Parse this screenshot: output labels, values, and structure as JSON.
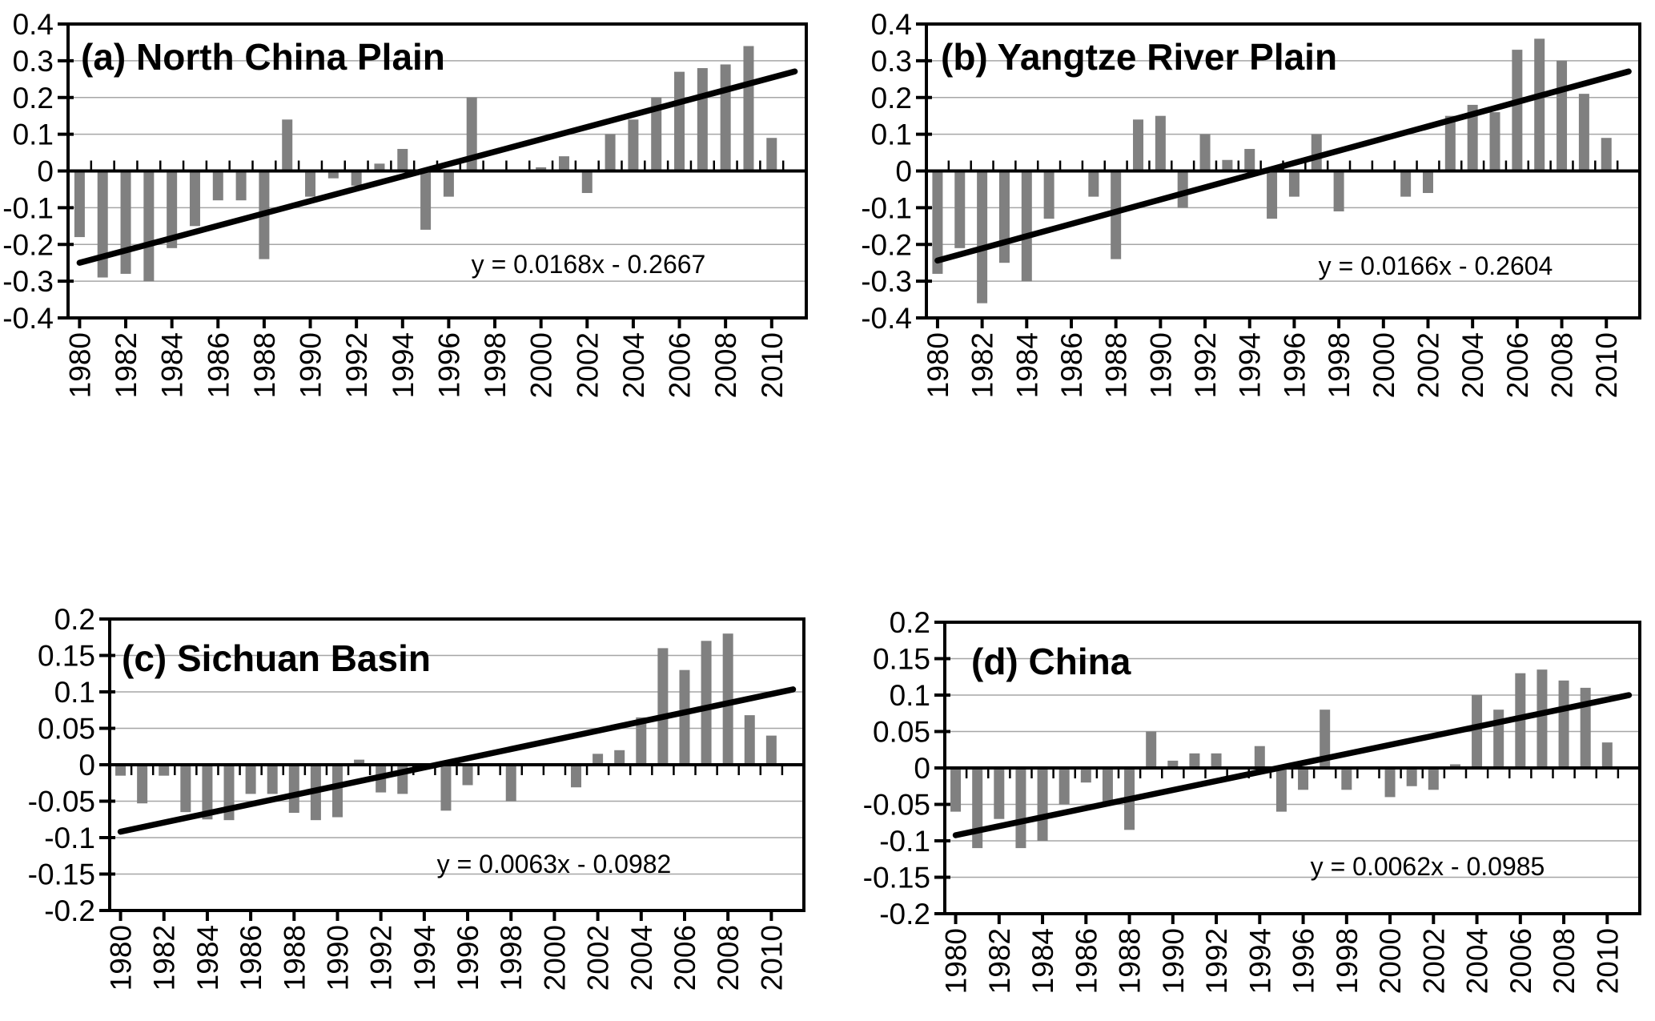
{
  "figure": {
    "description": "Four-panel annual anomaly bar charts with linear trend lines",
    "colors": {
      "bar": "#808080",
      "grid": "#a6a6a6",
      "axis": "#000000",
      "trend": "#000000",
      "background": "#ffffff"
    }
  },
  "chart_data": [
    {
      "id": "a",
      "type": "bar",
      "title": "(a) North China Plain",
      "equation": "y = 0.0168x - 0.2667",
      "trend": {
        "slope": 0.0168,
        "intercept": -0.2667
      },
      "years": [
        1980,
        1981,
        1982,
        1983,
        1984,
        1985,
        1986,
        1987,
        1988,
        1989,
        1990,
        1991,
        1992,
        1993,
        1994,
        1995,
        1996,
        1997,
        1998,
        1999,
        2000,
        2001,
        2002,
        2003,
        2004,
        2005,
        2006,
        2007,
        2008,
        2009,
        2010,
        2011
      ],
      "values": [
        -0.18,
        -0.29,
        -0.28,
        -0.3,
        -0.21,
        -0.15,
        -0.08,
        -0.08,
        -0.24,
        0.14,
        -0.07,
        -0.02,
        -0.04,
        0.02,
        0.06,
        -0.16,
        -0.07,
        0.2,
        0,
        0,
        0.01,
        0.04,
        -0.06,
        0.1,
        0.14,
        0.2,
        0.27,
        0.28,
        0.29,
        0.34,
        0.09,
        0
      ],
      "ylim": [
        -0.4,
        0.4
      ],
      "ytick_step": 0.1,
      "y_tick_labels": [
        "0.4",
        "0.3",
        "0.2",
        "0.1",
        "0",
        "-0.1",
        "-0.2",
        "-0.3",
        "-0.4"
      ],
      "x_tick_labels": [
        "1980",
        "1982",
        "1984",
        "1986",
        "1988",
        "1990",
        "1992",
        "1994",
        "1996",
        "1998",
        "2000",
        "2002",
        "2004",
        "2006",
        "2008",
        "2010"
      ],
      "grid": true,
      "legend": null
    },
    {
      "id": "b",
      "type": "bar",
      "title": "(b) Yangtze River Plain",
      "equation": "y = 0.0166x - 0.2604",
      "trend": {
        "slope": 0.0166,
        "intercept": -0.2604
      },
      "years": [
        1980,
        1981,
        1982,
        1983,
        1984,
        1985,
        1986,
        1987,
        1988,
        1989,
        1990,
        1991,
        1992,
        1993,
        1994,
        1995,
        1996,
        1997,
        1998,
        1999,
        2000,
        2001,
        2002,
        2003,
        2004,
        2005,
        2006,
        2007,
        2008,
        2009,
        2010,
        2011
      ],
      "values": [
        -0.28,
        -0.21,
        -0.36,
        -0.25,
        -0.3,
        -0.13,
        0,
        -0.07,
        -0.24,
        0.14,
        0.15,
        -0.1,
        0.1,
        0.03,
        0.06,
        -0.13,
        -0.07,
        0.1,
        -0.11,
        0,
        0,
        -0.07,
        -0.06,
        0.15,
        0.18,
        0.16,
        0.33,
        0.36,
        0.3,
        0.21,
        0.09,
        0
      ],
      "ylim": [
        -0.4,
        0.4
      ],
      "ytick_step": 0.1,
      "y_tick_labels": [
        "0.4",
        "0.3",
        "0.2",
        "0.1",
        "0",
        "-0.1",
        "-0.2",
        "-0.3",
        "-0.4"
      ],
      "x_tick_labels": [
        "1980",
        "1982",
        "1984",
        "1986",
        "1988",
        "1990",
        "1992",
        "1994",
        "1996",
        "1998",
        "2000",
        "2002",
        "2004",
        "2006",
        "2008",
        "2010"
      ],
      "grid": true,
      "legend": null
    },
    {
      "id": "c",
      "type": "bar",
      "title": "(c) Sichuan Basin",
      "equation": "y = 0.0063x - 0.0982",
      "trend": {
        "slope": 0.0063,
        "intercept": -0.0982
      },
      "years": [
        1980,
        1981,
        1982,
        1983,
        1984,
        1985,
        1986,
        1987,
        1988,
        1989,
        1990,
        1991,
        1992,
        1993,
        1994,
        1995,
        1996,
        1997,
        1998,
        1999,
        2000,
        2001,
        2002,
        2003,
        2004,
        2005,
        2006,
        2007,
        2008,
        2009,
        2010,
        2011
      ],
      "values": [
        -0.015,
        -0.053,
        -0.015,
        -0.065,
        -0.075,
        -0.076,
        -0.04,
        -0.04,
        -0.066,
        -0.076,
        -0.072,
        0.007,
        -0.038,
        -0.04,
        0,
        -0.063,
        -0.028,
        0,
        -0.05,
        0,
        0,
        -0.031,
        0.015,
        0.02,
        0.065,
        0.16,
        0.13,
        0.17,
        0.18,
        0.068,
        0.04,
        0
      ],
      "ylim": [
        -0.2,
        0.2
      ],
      "ytick_step": 0.05,
      "y_tick_labels": [
        "0.2",
        "0.15",
        "0.1",
        "0.05",
        "0",
        "-0.05",
        "-0.1",
        "-0.15",
        "-0.2"
      ],
      "x_tick_labels": [
        "1980",
        "1982",
        "1984",
        "1986",
        "1988",
        "1990",
        "1992",
        "1994",
        "1996",
        "1998",
        "2000",
        "2002",
        "2004",
        "2006",
        "2008",
        "2010"
      ],
      "grid": true,
      "legend": null
    },
    {
      "id": "d",
      "type": "bar",
      "title": "(d) China",
      "equation": "y = 0.0062x - 0.0985",
      "trend": {
        "slope": 0.0062,
        "intercept": -0.0985
      },
      "years": [
        1980,
        1981,
        1982,
        1983,
        1984,
        1985,
        1986,
        1987,
        1988,
        1989,
        1990,
        1991,
        1992,
        1993,
        1994,
        1995,
        1996,
        1997,
        1998,
        1999,
        2000,
        2001,
        2002,
        2003,
        2004,
        2005,
        2006,
        2007,
        2008,
        2009,
        2010,
        2011
      ],
      "values": [
        -0.06,
        -0.11,
        -0.07,
        -0.11,
        -0.1,
        -0.05,
        -0.02,
        -0.05,
        -0.085,
        0.05,
        0.01,
        0.02,
        0.02,
        0,
        0.03,
        -0.06,
        -0.03,
        0.08,
        -0.03,
        0,
        -0.04,
        -0.025,
        -0.03,
        0.005,
        0.1,
        0.08,
        0.13,
        0.135,
        0.12,
        0.11,
        0.035,
        0
      ],
      "ylim": [
        -0.2,
        0.2
      ],
      "ytick_step": 0.05,
      "y_tick_labels": [
        "0.2",
        "0.15",
        "0.1",
        "0.05",
        "0",
        "-0.05",
        "-0.1",
        "-0.15",
        "-0.2"
      ],
      "x_tick_labels": [
        "1980",
        "1982",
        "1984",
        "1986",
        "1988",
        "1990",
        "1992",
        "1994",
        "1996",
        "1998",
        "2000",
        "2002",
        "2004",
        "2006",
        "2008",
        "2010"
      ],
      "grid": true,
      "legend": null
    }
  ]
}
